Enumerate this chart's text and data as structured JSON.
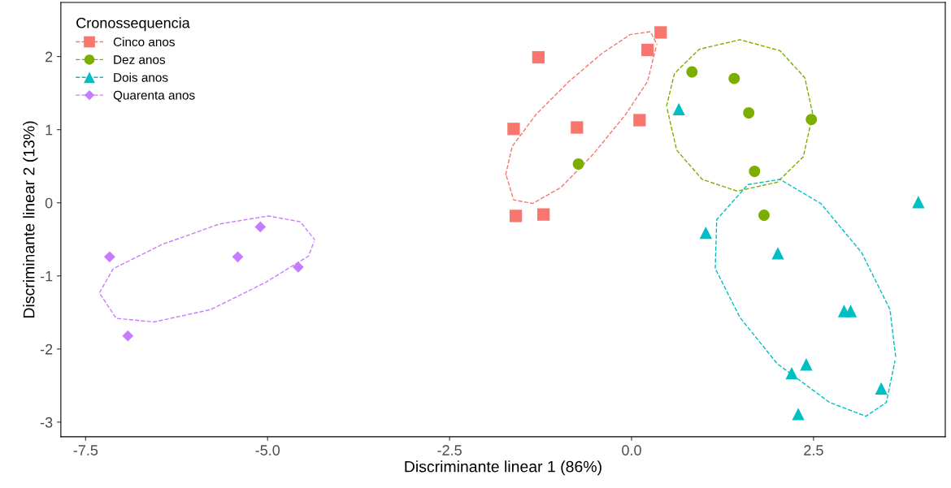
{
  "chart_data": {
    "type": "scatter",
    "xlabel": "Discriminante linear 1 (86%)",
    "ylabel": "Discriminante linear 2 (13%)",
    "legend_title": "Cronossequencia",
    "legend": "top left",
    "grid": false,
    "xlim": [
      -7.84,
      4.31
    ],
    "ylim": [
      -3.2,
      2.74
    ],
    "xticks": [
      {
        "value": -7.5,
        "label": "-7.5"
      },
      {
        "value": -5,
        "label": "-5.0"
      },
      {
        "value": -2.5,
        "label": "-2.5"
      },
      {
        "value": 0,
        "label": "0.0"
      },
      {
        "value": 2.5,
        "label": "2.5"
      }
    ],
    "yticks": [
      -3,
      -2,
      -1,
      0,
      1,
      2
    ],
    "series": [
      {
        "name": "Cinco anos",
        "color": "#f8766d",
        "marker": "square",
        "x": [
          -1.62,
          -1.59,
          -1.28,
          -1.21,
          -0.75,
          0.11,
          0.22,
          0.4
        ],
        "values": [
          1.01,
          -0.18,
          1.99,
          -0.16,
          1.03,
          1.13,
          2.09,
          2.33
        ]
      },
      {
        "name": "Dez anos",
        "color": "#7cae00",
        "marker": "circle",
        "x": [
          -0.73,
          0.83,
          1.41,
          1.61,
          1.69,
          1.82,
          2.47
        ],
        "values": [
          0.53,
          1.79,
          1.7,
          1.23,
          0.43,
          -0.17,
          1.14
        ]
      },
      {
        "name": "Dois anos",
        "color": "#00bfc4",
        "marker": "triangle",
        "x": [
          0.65,
          1.02,
          2.01,
          2.2,
          2.4,
          2.29,
          2.92,
          3.01,
          3.43,
          3.94
        ],
        "values": [
          1.28,
          -0.41,
          -0.69,
          -2.33,
          -2.21,
          -2.89,
          -1.48,
          -1.48,
          -2.54,
          0.01
        ]
      },
      {
        "name": "Quarenta anos",
        "color": "#c77cff",
        "marker": "diamond",
        "x": [
          -7.17,
          -6.92,
          -5.41,
          -5.1,
          -4.58
        ],
        "values": [
          -0.74,
          -1.82,
          -0.74,
          -0.33,
          -0.88
        ]
      },
      {
        "type": "line",
        "color": "#f8766d",
        "line_style": "dashed",
        "x": [
          -1.73,
          -1.64,
          -1.31,
          -0.86,
          -0.41,
          -0.02,
          0.26,
          0.35
        ],
        "values": [
          0.38,
          0.77,
          1.21,
          1.66,
          2.04,
          2.3,
          2.34,
          2.16
        ]
      },
      {
        "type": "line",
        "color": "#f8766d",
        "line_style": "dashed",
        "x": [
          -1.72,
          -1.62,
          -1.36,
          -0.97,
          -0.53,
          -0.08,
          0.22,
          0.34
        ],
        "values": [
          0.37,
          0.04,
          -0.01,
          0.21,
          0.66,
          1.21,
          1.66,
          2.14
        ]
      },
      {
        "type": "line",
        "color": "#7cae00",
        "line_style": "dashed",
        "x": [
          0.48,
          0.59,
          0.93,
          1.49,
          2.04,
          2.38,
          2.49
        ],
        "values": [
          1.32,
          1.77,
          2.1,
          2.23,
          2.08,
          1.71,
          1.21
        ]
      },
      {
        "type": "line",
        "color": "#7cae00",
        "line_style": "dashed",
        "x": [
          0.49,
          0.62,
          0.97,
          1.45,
          2.0,
          2.36,
          2.48
        ],
        "values": [
          1.28,
          0.72,
          0.32,
          0.16,
          0.28,
          0.63,
          1.17
        ]
      },
      {
        "type": "line",
        "color": "#00bfc4",
        "line_style": "dashed",
        "x": [
          1.15,
          1.17,
          1.6,
          2.04,
          2.6,
          3.16,
          3.55,
          3.63
        ],
        "values": [
          -0.9,
          -0.23,
          0.25,
          0.32,
          -0.01,
          -0.68,
          -1.46,
          -2.12
        ]
      },
      {
        "type": "line",
        "color": "#00bfc4",
        "line_style": "dashed",
        "x": [
          1.16,
          1.49,
          2.0,
          2.72,
          3.22,
          3.5,
          3.62
        ],
        "values": [
          -0.92,
          -1.57,
          -2.2,
          -2.73,
          -2.92,
          -2.73,
          -2.16
        ]
      },
      {
        "type": "line",
        "color": "#c77cff",
        "line_style": "dashed",
        "x": [
          -7.31,
          -7.12,
          -6.45,
          -5.66,
          -4.99,
          -4.55,
          -4.35
        ],
        "values": [
          -1.23,
          -0.9,
          -0.57,
          -0.29,
          -0.18,
          -0.26,
          -0.51
        ]
      },
      {
        "type": "line",
        "color": "#c77cff",
        "line_style": "dashed",
        "x": [
          -7.3,
          -7.08,
          -6.56,
          -5.78,
          -5.03,
          -4.44,
          -4.36
        ],
        "values": [
          -1.25,
          -1.58,
          -1.63,
          -1.46,
          -1.09,
          -0.73,
          -0.53
        ]
      }
    ]
  }
}
